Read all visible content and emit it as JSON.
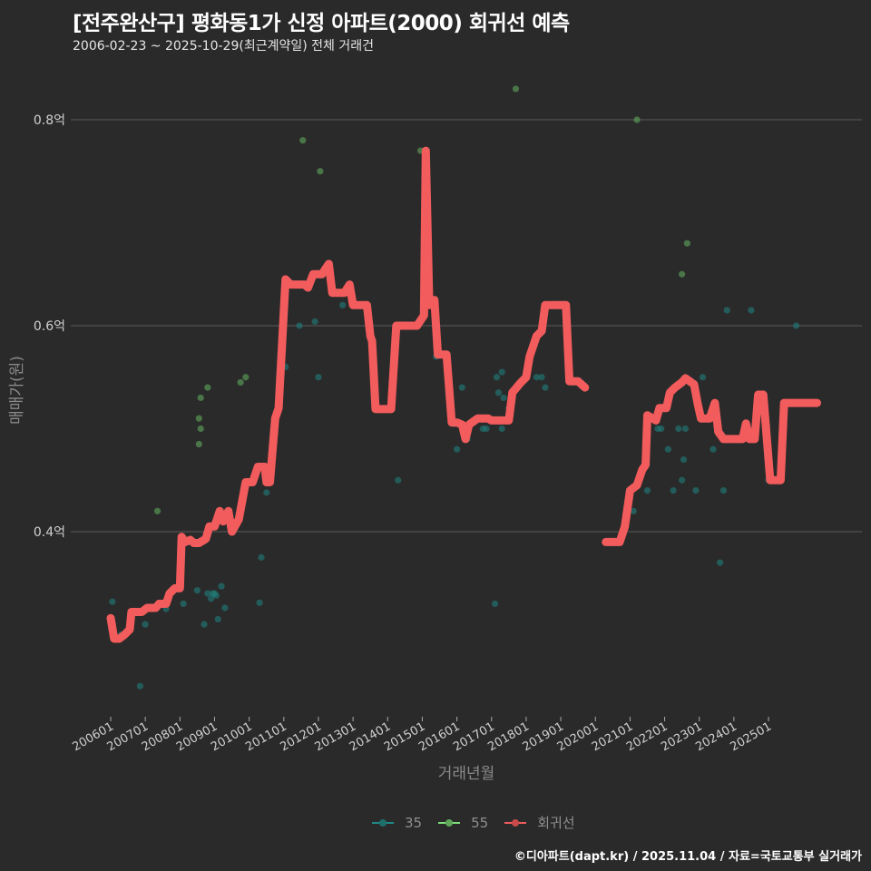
{
  "header": {
    "title": "[전주완산구] 평화동1가 신정 아파트(2000) 회귀선 예측",
    "subtitle": "2006-02-23 ~ 2025-10-29(최근계약일) 전체 거래건"
  },
  "axes": {
    "ylabel": "매매가(원)",
    "xlabel": "거래년월",
    "yticks": [
      {
        "v": 0.8,
        "label": "0.8억"
      },
      {
        "v": 0.6,
        "label": "0.6억"
      },
      {
        "v": 0.4,
        "label": "0.4억"
      }
    ],
    "xticks": [
      "200601",
      "200701",
      "200801",
      "200901",
      "201001",
      "201101",
      "201201",
      "201301",
      "201401",
      "201501",
      "201601",
      "201701",
      "201801",
      "201901",
      "202001",
      "202101",
      "202201",
      "202301",
      "202401",
      "202501"
    ]
  },
  "legend": {
    "items": [
      {
        "label": "35",
        "color": "#1f8a8a"
      },
      {
        "label": "55",
        "color": "#7ee07a"
      },
      {
        "label": "회귀선",
        "color": "#f25c5c"
      }
    ]
  },
  "footer": {
    "credit": "©디아파트(dapt.kr) / 2025.11.04 / 자료=국토교통부 실거래가"
  },
  "colors": {
    "bg": "#2a2a2b",
    "grid": "#5a5a5a",
    "s35": "#1f7f7a",
    "s55": "#5fa85a",
    "reg": "#f25c5c"
  },
  "chart_data": {
    "type": "scatter+line",
    "title": "[전주완산구] 평화동1가 신정 아파트(2000) 회귀선 예측",
    "subtitle": "2006-02-23 ~ 2025-10-29(최근계약일) 전체 거래건",
    "xlabel": "거래년월",
    "ylabel": "매매가(원)",
    "ylim": [
      0.22,
      0.85
    ],
    "unit": "억",
    "grid": true,
    "legend_position": "bottom",
    "series": [
      {
        "name": "35",
        "type": "scatter",
        "points": [
          [
            2006.05,
            0.332
          ],
          [
            2006.3,
            0.3
          ],
          [
            2006.85,
            0.25
          ],
          [
            2007.0,
            0.31
          ],
          [
            2007.6,
            0.325
          ],
          [
            2007.9,
            0.345
          ],
          [
            2008.1,
            0.33
          ],
          [
            2008.5,
            0.343
          ],
          [
            2008.7,
            0.31
          ],
          [
            2008.8,
            0.34
          ],
          [
            2008.9,
            0.335
          ],
          [
            2008.95,
            0.34
          ],
          [
            2009.0,
            0.34
          ],
          [
            2009.05,
            0.338
          ],
          [
            2009.1,
            0.315
          ],
          [
            2009.2,
            0.347
          ],
          [
            2009.3,
            0.326
          ],
          [
            2010.3,
            0.331
          ],
          [
            2010.35,
            0.375
          ],
          [
            2010.5,
            0.438
          ],
          [
            2011.05,
            0.56
          ],
          [
            2011.45,
            0.6
          ],
          [
            2011.9,
            0.604
          ],
          [
            2012.0,
            0.55
          ],
          [
            2012.7,
            0.62
          ],
          [
            2014.3,
            0.45
          ],
          [
            2015.4,
            0.57
          ],
          [
            2016.0,
            0.48
          ],
          [
            2016.15,
            0.54
          ],
          [
            2016.3,
            0.49
          ],
          [
            2016.75,
            0.5
          ],
          [
            2016.85,
            0.5
          ],
          [
            2017.1,
            0.33
          ],
          [
            2017.15,
            0.55
          ],
          [
            2017.2,
            0.535
          ],
          [
            2017.3,
            0.555
          ],
          [
            2017.35,
            0.53
          ],
          [
            2017.5,
            0.52
          ],
          [
            2017.6,
            0.535
          ],
          [
            2017.3,
            0.5
          ],
          [
            2018.3,
            0.55
          ],
          [
            2018.45,
            0.55
          ],
          [
            2018.55,
            0.54
          ],
          [
            2020.6,
            0.39
          ],
          [
            2021.1,
            0.42
          ],
          [
            2021.5,
            0.44
          ],
          [
            2021.8,
            0.5
          ],
          [
            2021.9,
            0.5
          ],
          [
            2022.1,
            0.48
          ],
          [
            2022.25,
            0.44
          ],
          [
            2022.4,
            0.5
          ],
          [
            2022.5,
            0.45
          ],
          [
            2022.55,
            0.47
          ],
          [
            2022.6,
            0.5
          ],
          [
            2022.9,
            0.44
          ],
          [
            2023.1,
            0.55
          ],
          [
            2023.4,
            0.48
          ],
          [
            2023.6,
            0.37
          ],
          [
            2023.7,
            0.44
          ],
          [
            2023.8,
            0.615
          ],
          [
            2024.5,
            0.615
          ],
          [
            2025.0,
            0.45
          ],
          [
            2025.8,
            0.6
          ]
        ]
      },
      {
        "name": "55",
        "type": "scatter",
        "points": [
          [
            2007.35,
            0.42
          ],
          [
            2008.55,
            0.51
          ],
          [
            2008.55,
            0.485
          ],
          [
            2008.6,
            0.5
          ],
          [
            2008.6,
            0.53
          ],
          [
            2008.8,
            0.54
          ],
          [
            2009.75,
            0.545
          ],
          [
            2009.9,
            0.55
          ],
          [
            2011.55,
            0.78
          ],
          [
            2012.05,
            0.75
          ],
          [
            2014.95,
            0.77
          ],
          [
            2017.7,
            0.83
          ],
          [
            2021.2,
            0.8
          ],
          [
            2022.5,
            0.65
          ],
          [
            2022.65,
            0.68
          ]
        ]
      },
      {
        "name": "회귀선",
        "type": "line",
        "points": [
          [
            2006.0,
            0.316
          ],
          [
            2006.1,
            0.296
          ],
          [
            2006.25,
            0.296
          ],
          [
            2006.4,
            0.3
          ],
          [
            2006.55,
            0.305
          ],
          [
            2006.6,
            0.322
          ],
          [
            2006.9,
            0.322
          ],
          [
            2007.05,
            0.326
          ],
          [
            2007.3,
            0.326
          ],
          [
            2007.4,
            0.33
          ],
          [
            2007.6,
            0.33
          ],
          [
            2007.7,
            0.34
          ],
          [
            2007.85,
            0.345
          ],
          [
            2008.0,
            0.345
          ],
          [
            2008.05,
            0.395
          ],
          [
            2008.15,
            0.39
          ],
          [
            2008.3,
            0.392
          ],
          [
            2008.4,
            0.389
          ],
          [
            2008.55,
            0.389
          ],
          [
            2008.75,
            0.393
          ],
          [
            2008.85,
            0.405
          ],
          [
            2009.0,
            0.405
          ],
          [
            2009.15,
            0.42
          ],
          [
            2009.25,
            0.41
          ],
          [
            2009.4,
            0.42
          ],
          [
            2009.5,
            0.4
          ],
          [
            2009.7,
            0.412
          ],
          [
            2009.8,
            0.43
          ],
          [
            2009.9,
            0.448
          ],
          [
            2010.1,
            0.448
          ],
          [
            2010.25,
            0.463
          ],
          [
            2010.45,
            0.463
          ],
          [
            2010.5,
            0.448
          ],
          [
            2010.6,
            0.448
          ],
          [
            2010.75,
            0.51
          ],
          [
            2010.85,
            0.52
          ],
          [
            2011.05,
            0.645
          ],
          [
            2011.2,
            0.64
          ],
          [
            2011.6,
            0.64
          ],
          [
            2011.7,
            0.637
          ],
          [
            2011.85,
            0.65
          ],
          [
            2012.1,
            0.65
          ],
          [
            2012.3,
            0.66
          ],
          [
            2012.4,
            0.632
          ],
          [
            2012.75,
            0.632
          ],
          [
            2012.9,
            0.64
          ],
          [
            2013.0,
            0.62
          ],
          [
            2013.4,
            0.62
          ],
          [
            2013.5,
            0.59
          ],
          [
            2013.55,
            0.585
          ],
          [
            2013.65,
            0.519
          ],
          [
            2013.7,
            0.519
          ],
          [
            2014.1,
            0.519
          ],
          [
            2014.25,
            0.6
          ],
          [
            2014.6,
            0.6
          ],
          [
            2014.85,
            0.6
          ],
          [
            2014.95,
            0.605
          ],
          [
            2015.05,
            0.61
          ],
          [
            2015.1,
            0.77
          ],
          [
            2015.2,
            0.62
          ],
          [
            2015.35,
            0.625
          ],
          [
            2015.45,
            0.572
          ],
          [
            2015.7,
            0.572
          ],
          [
            2015.85,
            0.506
          ],
          [
            2016.0,
            0.506
          ],
          [
            2016.15,
            0.504
          ],
          [
            2016.25,
            0.49
          ],
          [
            2016.35,
            0.504
          ],
          [
            2016.6,
            0.51
          ],
          [
            2016.9,
            0.51
          ],
          [
            2017.0,
            0.508
          ],
          [
            2017.5,
            0.508
          ],
          [
            2017.6,
            0.535
          ],
          [
            2017.85,
            0.545
          ],
          [
            2018.0,
            0.55
          ],
          [
            2018.1,
            0.57
          ],
          [
            2018.3,
            0.59
          ],
          [
            2018.45,
            0.595
          ],
          [
            2018.55,
            0.62
          ],
          [
            2018.85,
            0.62
          ],
          [
            2019.15,
            0.62
          ],
          [
            2019.25,
            0.546
          ],
          [
            2019.5,
            0.546
          ],
          [
            2019.7,
            0.54
          ],
          null,
          [
            2020.3,
            0.39
          ],
          [
            2020.7,
            0.39
          ],
          [
            2020.85,
            0.405
          ],
          [
            2021.0,
            0.44
          ],
          [
            2021.2,
            0.445
          ],
          [
            2021.35,
            0.46
          ],
          [
            2021.45,
            0.465
          ],
          [
            2021.5,
            0.513
          ],
          [
            2021.75,
            0.508
          ],
          [
            2021.85,
            0.52
          ],
          [
            2022.05,
            0.52
          ],
          [
            2022.15,
            0.535
          ],
          [
            2022.3,
            0.54
          ],
          [
            2022.5,
            0.545
          ],
          [
            2022.6,
            0.549
          ],
          [
            2022.85,
            0.543
          ],
          [
            2022.95,
            0.525
          ],
          [
            2023.05,
            0.51
          ],
          [
            2023.3,
            0.51
          ],
          [
            2023.45,
            0.525
          ],
          [
            2023.55,
            0.497
          ],
          [
            2023.7,
            0.49
          ],
          [
            2024.25,
            0.49
          ],
          [
            2024.35,
            0.505
          ],
          [
            2024.45,
            0.49
          ],
          [
            2024.6,
            0.49
          ],
          [
            2024.7,
            0.533
          ],
          [
            2024.85,
            0.533
          ],
          [
            2025.05,
            0.45
          ],
          [
            2025.35,
            0.45
          ],
          [
            2025.45,
            0.525
          ],
          [
            2026.4,
            0.525
          ]
        ]
      }
    ]
  }
}
